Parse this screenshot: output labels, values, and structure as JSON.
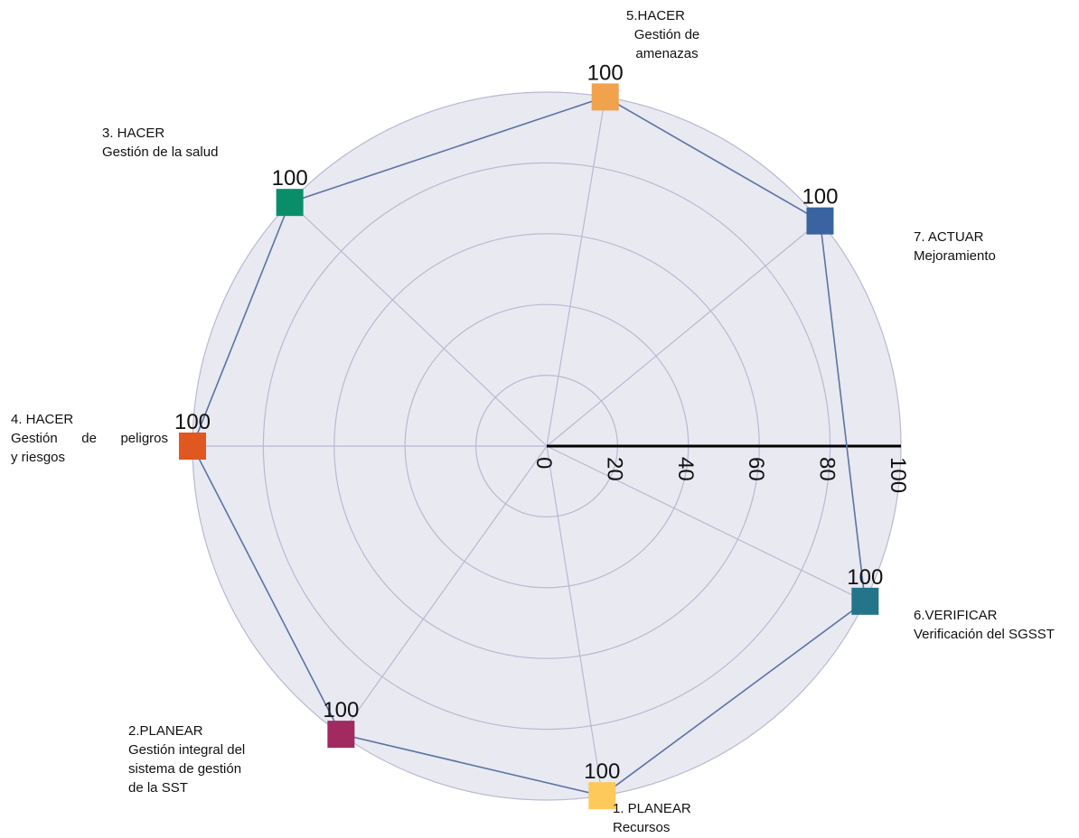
{
  "chart_data": {
    "type": "radar",
    "title": "",
    "rlim": [
      0,
      100
    ],
    "radial_ticks": [
      "0",
      "20",
      "40",
      "60",
      "80",
      "100"
    ],
    "grid": true,
    "categories": [
      {
        "title": "1. PLANEAR",
        "subtitle": [
          "Recursos"
        ],
        "value": 100,
        "value_label": "100",
        "color": "#FDC95A"
      },
      {
        "title": "2.PLANEAR",
        "subtitle": [
          "Gestión integral del",
          "sistema de gestión",
          "de la SST"
        ],
        "value": 100,
        "value_label": "100",
        "color": "#A12A61"
      },
      {
        "title": "4. HACER",
        "subtitle": [
          "Gestión de peligros",
          "y riesgos"
        ],
        "value": 100,
        "value_label": "100",
        "color": "#E0571F"
      },
      {
        "title": "3. HACER",
        "subtitle": [
          "Gestión de la salud"
        ],
        "value": 100,
        "value_label": "100",
        "color": "#0A8E6A"
      },
      {
        "title": "5.HACER",
        "subtitle": [
          "Gestión de",
          "amenazas"
        ],
        "value": 100,
        "value_label": "100",
        "color": "#F0A24C"
      },
      {
        "title": "7. ACTUAR",
        "subtitle": [
          "Mejoramiento"
        ],
        "value": 100,
        "value_label": "100",
        "color": "#3A64A0"
      },
      {
        "title": "6.VERIFICAR",
        "subtitle": [
          "Verificación del SGSST"
        ],
        "value": 100,
        "value_label": "100",
        "color": "#25758A"
      }
    ],
    "line_color": "#5B74A4",
    "grid_color": "#B9B9D2",
    "background_color": "#E9E9F2"
  }
}
